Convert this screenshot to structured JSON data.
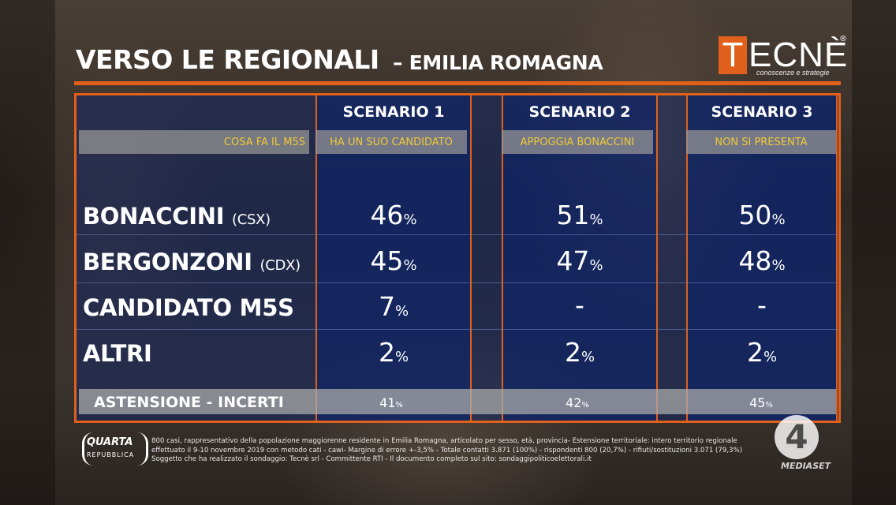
{
  "header": {
    "title": "VERSO LE REGIONALI",
    "subtitle": "– EMILIA ROMAGNA"
  },
  "logo": {
    "text": "TECNÈ",
    "tagline": "conoscenze e strategie",
    "mark": "®"
  },
  "table": {
    "row_header": "COSA FA IL M5S",
    "scenarios": [
      {
        "title": "SCENARIO 1",
        "m5s_action": "HA UN SUO CANDIDATO"
      },
      {
        "title": "SCENARIO 2",
        "m5s_action": "APPOGGIA BONACCINI"
      },
      {
        "title": "SCENARIO 3",
        "m5s_action": "NON SI PRESENTA"
      }
    ],
    "rows": [
      {
        "name": "BONACCINI",
        "coalition": "(CSX)",
        "values": [
          "46",
          "51",
          "50"
        ],
        "units": [
          "%",
          "%",
          "%"
        ]
      },
      {
        "name": "BERGONZONI",
        "coalition": "(CDX)",
        "values": [
          "45",
          "47",
          "48"
        ],
        "units": [
          "%",
          "%",
          "%"
        ]
      },
      {
        "name": "CANDIDATO M5S",
        "coalition": "",
        "values": [
          "7",
          "-",
          "-"
        ],
        "units": [
          "%",
          "",
          ""
        ]
      },
      {
        "name": "ALTRI",
        "coalition": "",
        "values": [
          "2",
          "2",
          "2"
        ],
        "units": [
          "%",
          "%",
          "%"
        ]
      }
    ],
    "abstention": {
      "label": "ASTENSIONE - INCERTI",
      "values": [
        "41",
        "42",
        "45"
      ],
      "unit": "%"
    }
  },
  "footer": {
    "show_title": "QUARTA",
    "show_sub": "REPUBBLICA",
    "disclaimer_lines": [
      "800 casi, rappresentativo della popolazione maggiorenne residente in Emilia Romagna, articolato per sesso, età, provincia- Estensione territoriale: intero territorio regionale",
      "effettuato il 9-10 novembre 2019 con metodo cati - cawi- Margine di errore +-3,5% - Totale contatti 3.871 (100%) - rispondenti 800 (20,7%) - rifiuti/sostituzioni 3.071 (79,3%)",
      "Soggetto che ha realizzato il sondaggio: Tecnè srl - Committente RTI - Il documento completo sul sito: sondaggipoliticoelettorali.it"
    ],
    "channel_number": "4",
    "channel_name": "MEDIASET"
  },
  "colors": {
    "accent": "#e0601c",
    "panel": "#1a3a8c",
    "highlight_text": "#f0c83a"
  }
}
